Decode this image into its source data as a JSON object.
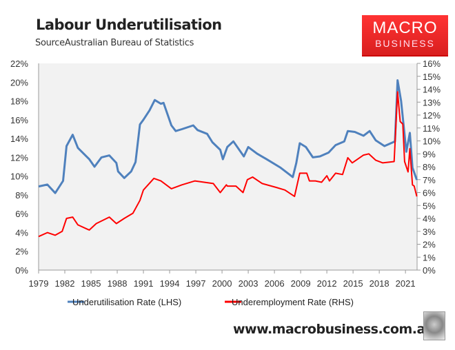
{
  "header": {
    "title": "Labour Underutilisation",
    "subtitle": "SourceAustralian Bureau of Statistics"
  },
  "logo": {
    "line1": "MACRO",
    "line2": "BUSINESS",
    "color": "#e8262a"
  },
  "footer": {
    "url": "www.macrobusiness.com.au",
    "icon": "wolf-head-icon"
  },
  "chart_data": {
    "type": "line",
    "title": "Labour Underutilisation",
    "x_ticks": [
      "1979",
      "1982",
      "1985",
      "1988",
      "1991",
      "1994",
      "1997",
      "2000",
      "2003",
      "2006",
      "2009",
      "2012",
      "2015",
      "2018",
      "2021"
    ],
    "y_left": {
      "range": [
        0,
        22
      ],
      "ticks": [
        "0%",
        "2%",
        "4%",
        "6%",
        "8%",
        "10%",
        "12%",
        "14%",
        "16%",
        "18%",
        "20%",
        "22%"
      ]
    },
    "y_right": {
      "range": [
        0,
        16
      ],
      "ticks": [
        "0%",
        "1%",
        "2%",
        "3%",
        "4%",
        "5%",
        "6%",
        "7%",
        "8%",
        "9%",
        "10%",
        "11%",
        "12%",
        "13%",
        "14%",
        "15%",
        "16%"
      ]
    },
    "grid": false,
    "plot_background": "#f2f2f2",
    "legend": "bottom",
    "series": [
      {
        "name": "Underutilisation Rate (LHS)",
        "axis": "left",
        "color": "#4f81bd",
        "x": [
          1979.0,
          1980.0,
          1980.9,
          1981.8,
          1982.2,
          1982.9,
          1983.5,
          1984.8,
          1985.4,
          1986.2,
          1987.1,
          1987.9,
          1988.1,
          1988.8,
          1989.6,
          1990.1,
          1990.6,
          1991.0,
          1991.7,
          1992.3,
          1993.0,
          1993.3,
          1994.2,
          1994.7,
          1995.4,
          1996.7,
          1997.2,
          1998.3,
          1998.9,
          1999.8,
          2000.1,
          2000.6,
          2001.3,
          2002.5,
          2003.0,
          2004.0,
          2005.1,
          2006.7,
          2008.1,
          2008.5,
          2008.9,
          2009.6,
          2010.4,
          2011.2,
          2012.2,
          2013.0,
          2014.0,
          2014.4,
          2015.2,
          2016.2,
          2016.9,
          2017.6,
          2018.6,
          2019.8,
          2020.1,
          2020.5,
          2021.1,
          2021.5,
          2021.8,
          2022.3
        ],
        "y": [
          8.9,
          9.1,
          8.2,
          9.5,
          13.2,
          14.4,
          13.0,
          11.8,
          11.0,
          12.0,
          12.2,
          11.4,
          10.5,
          9.8,
          10.5,
          11.5,
          15.5,
          16.0,
          17.0,
          18.1,
          17.7,
          17.8,
          15.4,
          14.8,
          15.0,
          15.4,
          14.9,
          14.5,
          13.6,
          12.8,
          11.8,
          13.1,
          13.7,
          12.1,
          13.1,
          12.4,
          11.8,
          10.9,
          9.9,
          11.4,
          13.5,
          13.1,
          12.0,
          12.1,
          12.5,
          13.3,
          13.7,
          14.8,
          14.7,
          14.3,
          14.8,
          13.8,
          13.2,
          13.7,
          20.2,
          18.0,
          12.6,
          14.6,
          10.9,
          9.6
        ]
      },
      {
        "name": "Underemployment Rate (RHS)",
        "axis": "right",
        "color": "#ff0000",
        "x": [
          1979.0,
          1980.0,
          1980.9,
          1981.7,
          1982.2,
          1982.9,
          1983.5,
          1984.8,
          1985.6,
          1987.1,
          1987.9,
          1988.8,
          1989.8,
          1990.6,
          1991.0,
          1992.2,
          1993.0,
          1994.2,
          1995.4,
          1996.9,
          1999.0,
          1999.8,
          2000.5,
          2000.6,
          2001.6,
          2002.4,
          2002.9,
          2003.5,
          2004.6,
          2006.2,
          2007.2,
          2008.3,
          2008.9,
          2009.7,
          2010.0,
          2010.7,
          2011.4,
          2012.0,
          2012.3,
          2013.0,
          2013.8,
          2014.4,
          2014.9,
          2016.2,
          2016.8,
          2017.6,
          2018.4,
          2019.7,
          2020.1,
          2020.4,
          2020.7,
          2020.9,
          2021.3,
          2021.5,
          2021.8,
          2022.0,
          2022.3
        ],
        "y": [
          2.6,
          2.9,
          2.7,
          3.0,
          4.0,
          4.1,
          3.5,
          3.1,
          3.6,
          4.1,
          3.6,
          4.0,
          4.4,
          5.4,
          6.2,
          7.1,
          6.9,
          6.3,
          6.6,
          6.9,
          6.7,
          6.0,
          6.6,
          6.5,
          6.5,
          6.0,
          7.0,
          7.2,
          6.7,
          6.4,
          6.2,
          5.7,
          7.5,
          7.5,
          6.9,
          6.9,
          6.8,
          7.3,
          6.9,
          7.5,
          7.4,
          8.7,
          8.3,
          8.9,
          9.0,
          8.5,
          8.3,
          8.4,
          13.8,
          11.5,
          11.3,
          8.4,
          7.6,
          9.4,
          6.6,
          6.5,
          5.7
        ]
      }
    ]
  }
}
